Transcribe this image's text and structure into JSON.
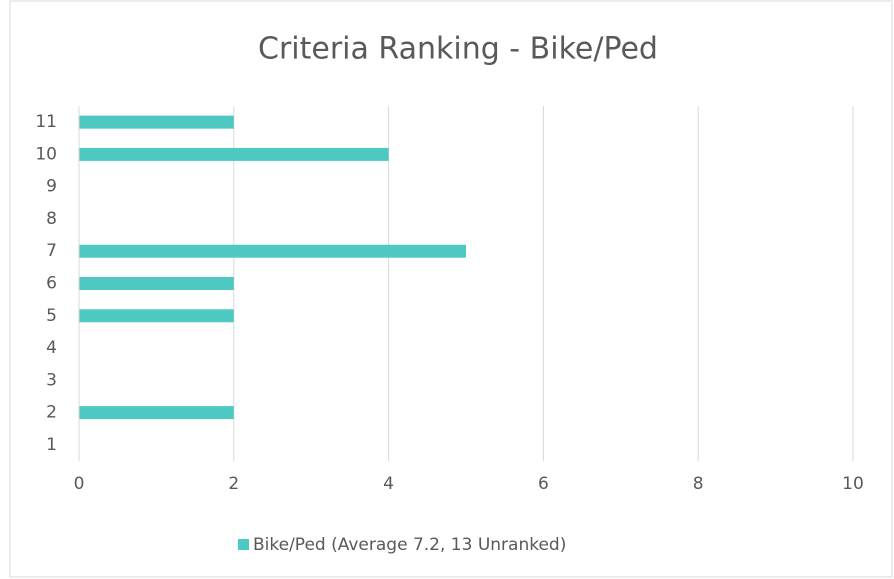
{
  "chart_data": {
    "type": "hbar",
    "title": "Criteria Ranking - Bike/Ped",
    "categories": [
      "1",
      "2",
      "3",
      "4",
      "5",
      "6",
      "7",
      "8",
      "9",
      "10",
      "11"
    ],
    "series": [
      {
        "name": "Bike/Ped (Average 7.2, 13 Unranked)",
        "color": "#4dc9c2",
        "values": [
          0,
          2,
          0,
          0,
          2,
          2,
          5,
          0,
          0,
          4,
          2
        ]
      }
    ],
    "xlim": [
      0,
      10
    ],
    "xticks": [
      0,
      2,
      4,
      6,
      8,
      10
    ],
    "grid": true,
    "legend": "bottom"
  }
}
